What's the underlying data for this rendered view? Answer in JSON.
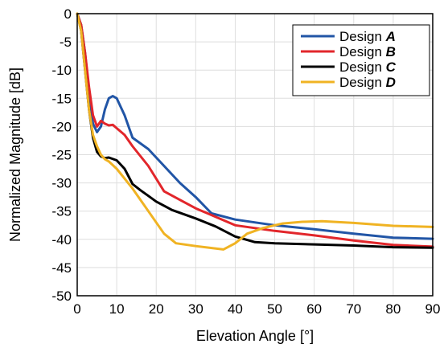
{
  "chart_data": {
    "type": "line",
    "title": "",
    "xlabel": "Elevation Angle [°]",
    "ylabel": "Normalized Magnitude [dB]",
    "xlim": [
      0,
      90
    ],
    "ylim": [
      -50,
      0
    ],
    "xticks": [
      0,
      10,
      20,
      30,
      40,
      50,
      60,
      70,
      80,
      90
    ],
    "yticks": [
      0,
      -5,
      -10,
      -15,
      -20,
      -25,
      -30,
      -35,
      -40,
      -45,
      -50
    ],
    "grid": true,
    "legend_position": "top-right",
    "series": [
      {
        "name": "Design A",
        "legend_prefix": "Design ",
        "legend_letter": "A",
        "color": "#2155a6",
        "x": [
          0,
          1,
          2,
          3,
          4,
          5,
          6,
          7,
          8,
          9,
          10,
          12,
          14,
          18,
          22,
          26,
          30,
          34,
          40,
          50,
          60,
          70,
          80,
          90
        ],
        "y": [
          0,
          -2,
          -7,
          -14,
          -19.5,
          -21,
          -20,
          -17,
          -15,
          -14.6,
          -15,
          -18,
          -22,
          -24,
          -27,
          -30,
          -32.5,
          -35.4,
          -36.5,
          -37.5,
          -38.2,
          -39,
          -39.7,
          -39.9
        ]
      },
      {
        "name": "Design B",
        "legend_prefix": "Design ",
        "legend_letter": "B",
        "color": "#e2262b",
        "x": [
          0,
          1,
          2,
          3,
          4,
          5,
          6,
          7,
          8,
          9,
          10,
          12,
          14,
          18,
          22,
          26,
          30,
          35,
          40,
          50,
          60,
          70,
          80,
          90
        ],
        "y": [
          0,
          -2,
          -7,
          -13,
          -18,
          -20,
          -19,
          -19.5,
          -19.8,
          -19.7,
          -20.3,
          -21.5,
          -23.5,
          -27,
          -31.5,
          -33,
          -34.5,
          -36,
          -37.5,
          -38.5,
          -39.3,
          -40.2,
          -41,
          -41.3
        ]
      },
      {
        "name": "Design C",
        "legend_prefix": "Design ",
        "legend_letter": "C",
        "color": "#000000",
        "x": [
          0,
          1,
          2,
          3,
          4,
          5,
          6,
          7,
          8,
          10,
          12,
          14,
          16,
          18,
          20,
          24,
          30,
          35,
          40,
          45,
          50,
          60,
          70,
          80,
          90
        ],
        "y": [
          0,
          -3,
          -10,
          -17,
          -22,
          -24.5,
          -25.3,
          -25.6,
          -25.5,
          -26,
          -27.5,
          -30.2,
          -31.3,
          -32.3,
          -33.3,
          -34.8,
          -36.3,
          -37.7,
          -39.5,
          -40.5,
          -40.7,
          -40.9,
          -41.1,
          -41.4,
          -41.5
        ]
      },
      {
        "name": "Design D",
        "legend_prefix": "Design ",
        "legend_letter": "D",
        "color": "#f0b323",
        "x": [
          0,
          1,
          2,
          3,
          4,
          5,
          6,
          7,
          8,
          10,
          14,
          18,
          22,
          25,
          30,
          37,
          40,
          43,
          47,
          52,
          57,
          62,
          70,
          80,
          90
        ],
        "y": [
          0,
          -3,
          -10,
          -17,
          -21.5,
          -23.5,
          -25,
          -25.8,
          -26.2,
          -27.5,
          -31,
          -35,
          -39,
          -40.7,
          -41.2,
          -41.8,
          -40.7,
          -39,
          -38,
          -37.2,
          -36.9,
          -36.8,
          -37.1,
          -37.6,
          -37.8
        ]
      }
    ]
  }
}
